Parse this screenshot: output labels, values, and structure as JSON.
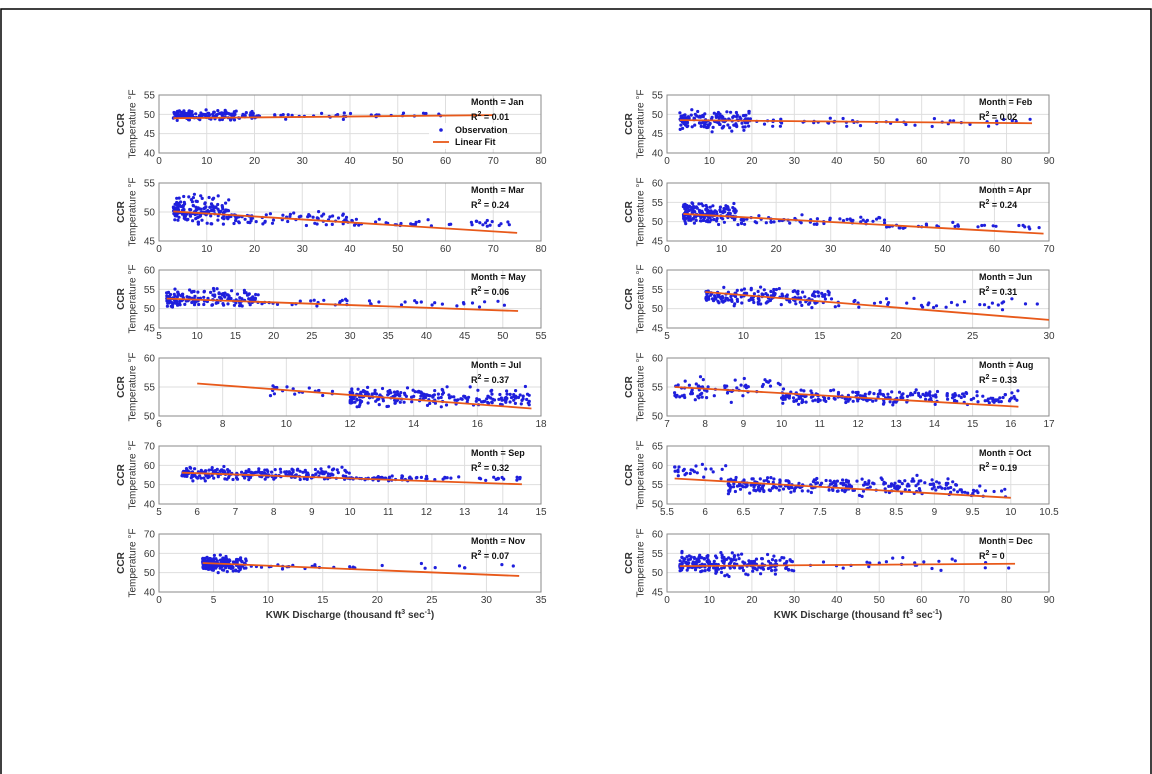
{
  "colors": {
    "observation": "#1f1fdc",
    "fit": "#e8591a",
    "grid": "#dedede",
    "axis": "#8a8a8a",
    "frame": "#000000"
  },
  "legend": {
    "observation": "Observation",
    "fit": "Linear Fit"
  },
  "ylabel_line1": "CCR",
  "ylabel_line2": "Temperature °F",
  "xlabel_main": "KWK Discharge (thousand ft",
  "xlabel_sup": "3",
  "xlabel_mid": " sec",
  "xlabel_sup2": "-1",
  "xlabel_end": ")",
  "chart_data": [
    {
      "type": "scatter",
      "month_label": "Month = Jan",
      "r2": "= 0.01",
      "xlim": [
        0,
        80
      ],
      "xticks": [
        0,
        10,
        20,
        30,
        40,
        50,
        60,
        70,
        80
      ],
      "ylim": [
        40,
        55
      ],
      "yticks": [
        40,
        45,
        50,
        55
      ],
      "fit": [
        [
          3,
          49.0
        ],
        [
          70,
          49.8
        ]
      ],
      "clusters": [
        [
          3,
          20,
          48,
          51.5,
          160
        ],
        [
          20,
          62,
          48.5,
          51,
          40
        ]
      ],
      "has_legend": true
    },
    {
      "type": "scatter",
      "month_label": "Month = Feb",
      "r2": "= 0.02",
      "xlim": [
        0,
        90
      ],
      "xticks": [
        0,
        10,
        20,
        30,
        40,
        50,
        60,
        70,
        80,
        90
      ],
      "ylim": [
        40,
        55
      ],
      "yticks": [
        40,
        45,
        50,
        55
      ],
      "fit": [
        [
          3,
          48.5
        ],
        [
          86,
          47.7
        ]
      ],
      "clusters": [
        [
          3,
          20,
          45,
          52,
          150
        ],
        [
          20,
          86,
          46.5,
          49.5,
          50
        ]
      ]
    },
    {
      "type": "scatter",
      "month_label": "Month = Mar",
      "r2": "= 0.24",
      "xlim": [
        0,
        80
      ],
      "xticks": [
        0,
        10,
        20,
        30,
        40,
        50,
        60,
        70,
        80
      ],
      "ylim": [
        45,
        55
      ],
      "yticks": [
        45,
        50,
        55
      ],
      "fit": [
        [
          3,
          50.1
        ],
        [
          75,
          46.4
        ]
      ],
      "clusters": [
        [
          3,
          15,
          47,
          53.5,
          160
        ],
        [
          15,
          40,
          47,
          50.5,
          70
        ],
        [
          40,
          75,
          47,
          49,
          40
        ]
      ]
    },
    {
      "type": "scatter",
      "month_label": "Month = Apr",
      "r2": "= 0.24",
      "xlim": [
        0,
        70
      ],
      "xticks": [
        0,
        10,
        20,
        30,
        40,
        50,
        60,
        70
      ],
      "ylim": [
        45,
        60
      ],
      "yticks": [
        45,
        50,
        55,
        60
      ],
      "fit": [
        [
          3,
          52
        ],
        [
          69,
          46.9
        ]
      ],
      "clusters": [
        [
          3,
          13,
          48,
          56,
          170
        ],
        [
          13,
          40,
          48.5,
          52,
          60
        ],
        [
          40,
          69,
          47.5,
          50,
          30
        ]
      ]
    },
    {
      "type": "scatter",
      "month_label": "Month = May",
      "r2": "= 0.06",
      "xlim": [
        5,
        55
      ],
      "xticks": [
        5,
        10,
        15,
        20,
        25,
        30,
        35,
        40,
        45,
        50,
        55
      ],
      "ylim": [
        45,
        60
      ],
      "yticks": [
        45,
        50,
        55,
        60
      ],
      "fit": [
        [
          6,
          52.6
        ],
        [
          52,
          49.4
        ]
      ],
      "clusters": [
        [
          6,
          18,
          49.5,
          56,
          170
        ],
        [
          18,
          52,
          50,
          53,
          40
        ]
      ]
    },
    {
      "type": "scatter",
      "month_label": "Month = Jun",
      "r2": "= 0.31",
      "xlim": [
        5,
        30
      ],
      "xticks": [
        5,
        10,
        15,
        20,
        25,
        30
      ],
      "ylim": [
        45,
        60
      ],
      "yticks": [
        45,
        50,
        55,
        60
      ],
      "fit": [
        [
          7.5,
          54.3
        ],
        [
          30,
          47.1
        ]
      ],
      "clusters": [
        [
          7.5,
          16,
          49.5,
          56.5,
          170
        ],
        [
          16,
          29.5,
          49.5,
          53,
          35
        ]
      ]
    },
    {
      "type": "scatter",
      "month_label": "Month = Jul",
      "r2": "= 0.37",
      "xlim": [
        6,
        18
      ],
      "xticks": [
        6,
        8,
        10,
        12,
        14,
        16,
        18
      ],
      "ylim": [
        50,
        60
      ],
      "yticks": [
        50,
        55,
        60
      ],
      "fit": [
        [
          7.2,
          55.6
        ],
        [
          17.7,
          51.3
        ]
      ],
      "clusters": [
        [
          9.5,
          11.5,
          52,
          56.5,
          20
        ],
        [
          12,
          17.7,
          51,
          55.5,
          230
        ]
      ]
    },
    {
      "type": "scatter",
      "month_label": "Month = Aug",
      "r2": "= 0.33",
      "xlim": [
        7,
        17
      ],
      "xticks": [
        7,
        8,
        9,
        10,
        11,
        12,
        13,
        14,
        15,
        16,
        17
      ],
      "ylim": [
        50,
        60
      ],
      "yticks": [
        50,
        55,
        60
      ],
      "fit": [
        [
          7.2,
          55
        ],
        [
          16.2,
          51.6
        ]
      ],
      "clusters": [
        [
          7.2,
          10,
          52,
          57.5,
          70
        ],
        [
          10,
          16.2,
          51.5,
          55,
          220
        ]
      ]
    },
    {
      "type": "scatter",
      "month_label": "Month = Sep",
      "r2": "= 0.32",
      "xlim": [
        5,
        15
      ],
      "xticks": [
        5,
        6,
        7,
        8,
        9,
        10,
        11,
        12,
        13,
        14,
        15
      ],
      "ylim": [
        40,
        70
      ],
      "yticks": [
        40,
        50,
        60,
        70
      ],
      "fit": [
        [
          5.6,
          56.2
        ],
        [
          14.5,
          50.2
        ]
      ],
      "clusters": [
        [
          5.6,
          10,
          51,
          60,
          230
        ],
        [
          10,
          14.5,
          51.5,
          55,
          70
        ]
      ]
    },
    {
      "type": "scatter",
      "month_label": "Month = Oct",
      "r2": "= 0.19",
      "xlim": [
        5.5,
        10.5
      ],
      "xticks": [
        5.5,
        6,
        6.5,
        7,
        7.5,
        8,
        8.5,
        9,
        9.5,
        10,
        10.5
      ],
      "ylim": [
        50,
        65
      ],
      "yticks": [
        50,
        55,
        60,
        65
      ],
      "fit": [
        [
          5.6,
          56.6
        ],
        [
          10,
          51.6
        ]
      ],
      "clusters": [
        [
          5.6,
          6.3,
          55,
          62,
          25
        ],
        [
          6.3,
          9.3,
          51.5,
          58,
          260
        ],
        [
          9.3,
          10,
          51,
          55.5,
          20
        ]
      ]
    },
    {
      "type": "scatter",
      "month_label": "Month = Nov",
      "r2": "= 0.07",
      "xlim": [
        0,
        35
      ],
      "xticks": [
        0,
        5,
        10,
        15,
        20,
        25,
        30,
        35
      ],
      "ylim": [
        40,
        70
      ],
      "yticks": [
        40,
        50,
        60,
        70
      ],
      "fit": [
        [
          4,
          55
        ],
        [
          33,
          48.3
        ]
      ],
      "clusters": [
        [
          4,
          8,
          49,
          60,
          200
        ],
        [
          8,
          32.5,
          51,
          55,
          30
        ]
      ]
    },
    {
      "type": "scatter",
      "month_label": "Month = Dec",
      "r2": "= 0",
      "xlim": [
        0,
        90
      ],
      "xticks": [
        0,
        10,
        20,
        30,
        40,
        50,
        60,
        70,
        80,
        90
      ],
      "ylim": [
        45,
        60
      ],
      "yticks": [
        45,
        50,
        55,
        60
      ],
      "fit": [
        [
          3,
          51.7
        ],
        [
          82,
          52.3
        ]
      ],
      "clusters": [
        [
          3,
          30,
          48.5,
          56,
          230
        ],
        [
          30,
          82,
          50,
          55,
          25
        ]
      ]
    }
  ]
}
